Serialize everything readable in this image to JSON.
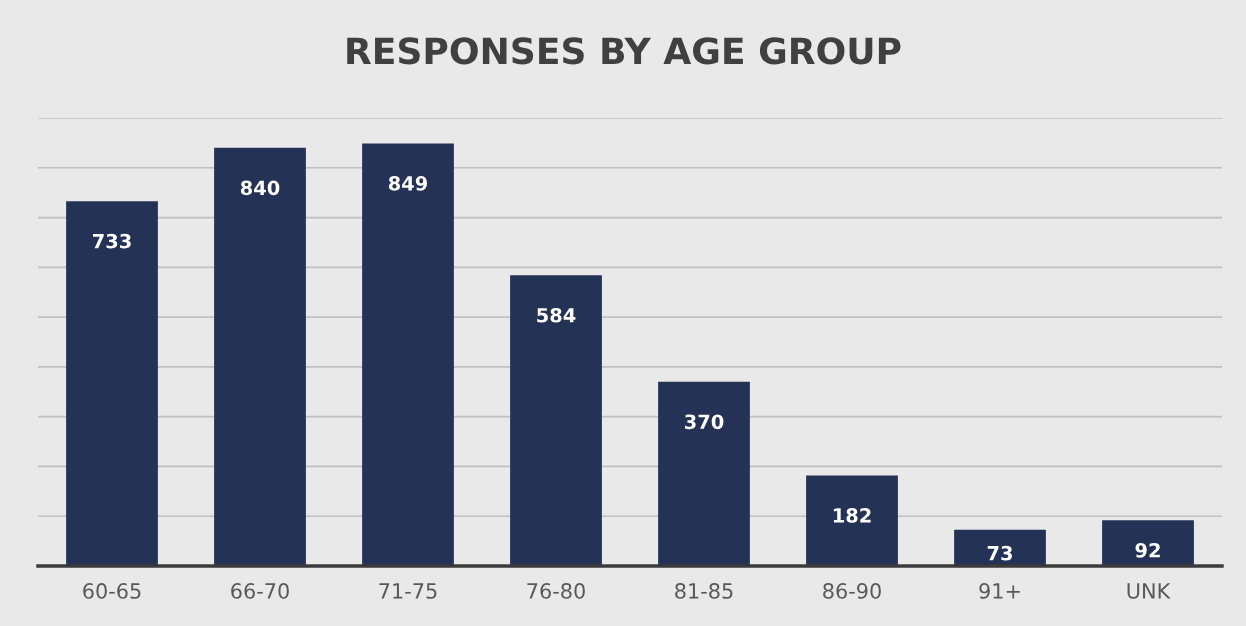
{
  "chart_data": {
    "type": "bar",
    "title": "RESPONSES BY AGE GROUP",
    "categories": [
      "60-65",
      "66-70",
      "71-75",
      "76-80",
      "81-85",
      "86-90",
      "91+",
      "UNK"
    ],
    "values": [
      733,
      840,
      849,
      584,
      370,
      182,
      73,
      92
    ],
    "color": "#243256",
    "ylim": [
      0,
      900
    ],
    "yticks": [
      {
        "value": 0,
        "label": null
      },
      {
        "value": 100,
        "label": null
      },
      {
        "value": 200,
        "label": null
      },
      {
        "value": 300,
        "label": null
      },
      {
        "value": 400,
        "label": null
      },
      {
        "value": 500,
        "label": null
      },
      {
        "value": 600,
        "label": null
      },
      {
        "value": 700,
        "label": null
      },
      {
        "value": 800,
        "label": null
      },
      {
        "value": 900,
        "label": null
      }
    ],
    "tick_labels": "x",
    "grid": "y",
    "data_labels": true,
    "legend": false
  }
}
